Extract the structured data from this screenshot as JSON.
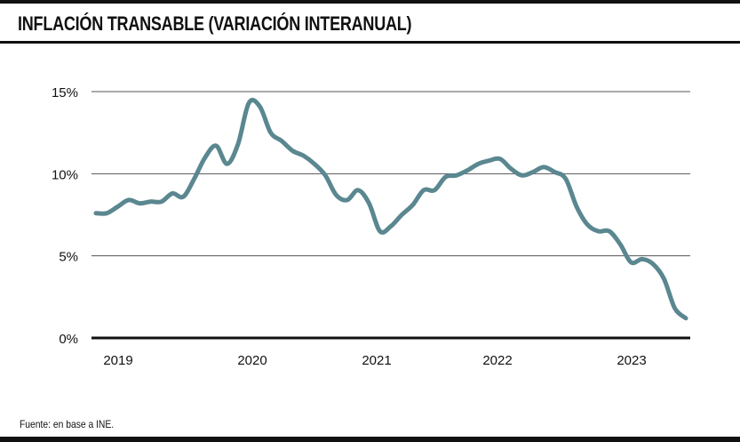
{
  "header": {
    "title": "INFLACIÓN TRANSABLE (VARIACIÓN INTERANUAL)"
  },
  "footer": {
    "source": "Fuente: en base a INE."
  },
  "colors": {
    "line": "#5a8790",
    "grid": "#555555",
    "axis": "#111111"
  },
  "chart_data": {
    "type": "line",
    "title": "INFLACIÓN TRANSABLE (VARIACIÓN INTERANUAL)",
    "xlabel": "",
    "ylabel": "",
    "x_tick_labels": [
      "2019",
      "2020",
      "2021",
      "2022",
      "2023"
    ],
    "y_ticks": [
      0,
      5,
      10,
      15
    ],
    "y_tick_labels": [
      "0%",
      "5%",
      "10%",
      "15%"
    ],
    "ylim": [
      0,
      15
    ],
    "grid": true,
    "legend": "none",
    "series": [
      {
        "name": "Inflación transable",
        "x": [
          "2018-12",
          "2019-01",
          "2019-02",
          "2019-03",
          "2019-04",
          "2019-05",
          "2019-06",
          "2019-07",
          "2019-08",
          "2019-09",
          "2019-10",
          "2019-11",
          "2019-12",
          "2020-01",
          "2020-02",
          "2020-03",
          "2020-04",
          "2020-05",
          "2020-06",
          "2020-07",
          "2020-08",
          "2020-09",
          "2020-10",
          "2020-11",
          "2020-12",
          "2021-01",
          "2021-02",
          "2021-03",
          "2021-04",
          "2021-05",
          "2021-06",
          "2021-07",
          "2021-08",
          "2021-09",
          "2021-10",
          "2021-11",
          "2021-12",
          "2022-01",
          "2022-02",
          "2022-03",
          "2022-04",
          "2022-05",
          "2022-06",
          "2022-07",
          "2022-08",
          "2022-09",
          "2022-10",
          "2022-11",
          "2022-12",
          "2023-01",
          "2023-02",
          "2023-03",
          "2023-04",
          "2023-05",
          "2023-06"
        ],
        "values": [
          7.6,
          7.6,
          8.0,
          8.4,
          8.2,
          8.3,
          8.3,
          8.8,
          8.6,
          9.7,
          11.0,
          11.7,
          10.6,
          11.8,
          14.3,
          14.1,
          12.5,
          12.0,
          11.4,
          11.1,
          10.6,
          9.9,
          8.7,
          8.4,
          9.0,
          8.2,
          6.5,
          6.8,
          7.5,
          8.1,
          9.0,
          9.0,
          9.8,
          9.9,
          10.2,
          10.6,
          10.8,
          10.9,
          10.3,
          9.9,
          10.1,
          10.4,
          10.1,
          9.7,
          8.0,
          6.9,
          6.5,
          6.5,
          5.7,
          4.6,
          4.8,
          4.5,
          3.6,
          1.8,
          1.2
        ]
      }
    ]
  }
}
